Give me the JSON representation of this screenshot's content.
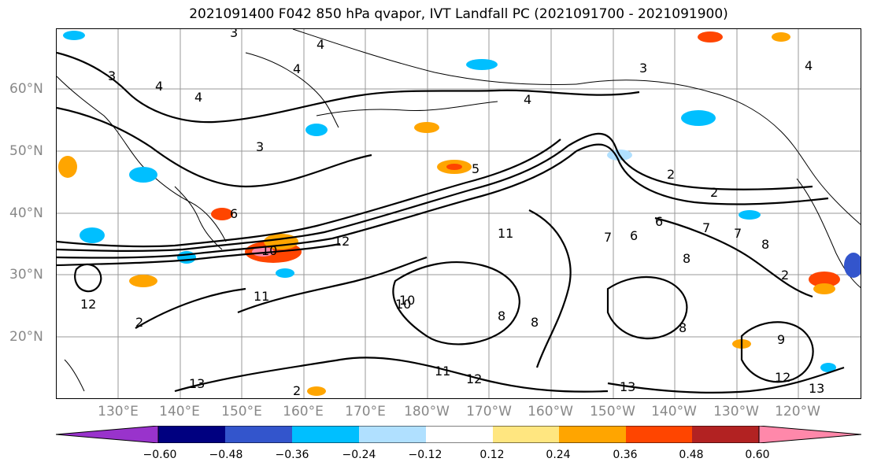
{
  "title": "2021091400 F042 850 hPa qvapor, IVT Landfall PC (2021091700 - 2021091900)",
  "lat_labels": [
    "60°N",
    "50°N",
    "40°N",
    "30°N",
    "20°N"
  ],
  "lon_labels": [
    "130°E",
    "140°E",
    "150°E",
    "160°E",
    "170°E",
    "180°W",
    "170°W",
    "160°W",
    "150°W",
    "140°W",
    "130°W",
    "120°W"
  ],
  "colorbar": {
    "colors": [
      "#9933cc",
      "#000080",
      "#3355cc",
      "#00bfff",
      "#b0e0ff",
      "#ffffff",
      "#ffe680",
      "#ffa500",
      "#ff4500",
      "#b22222",
      "#ff88aa"
    ],
    "tick_labels": [
      "−0.60",
      "−0.48",
      "−0.36",
      "−0.24",
      "−0.12",
      "0.12",
      "0.24",
      "0.36",
      "0.48",
      "0.60"
    ]
  },
  "contour_labels": [
    "3",
    "4",
    "4",
    "4",
    "3",
    "3",
    "4",
    "4",
    "3",
    "4",
    "2",
    "2",
    "5",
    "6",
    "10",
    "12",
    "11",
    "11",
    "12",
    "10",
    "8",
    "8",
    "6",
    "7",
    "7",
    "8",
    "8",
    "2",
    "6",
    "7",
    "2",
    "13",
    "13",
    "12",
    "13",
    "9",
    "8",
    "10",
    "12",
    "2",
    "11"
  ]
}
